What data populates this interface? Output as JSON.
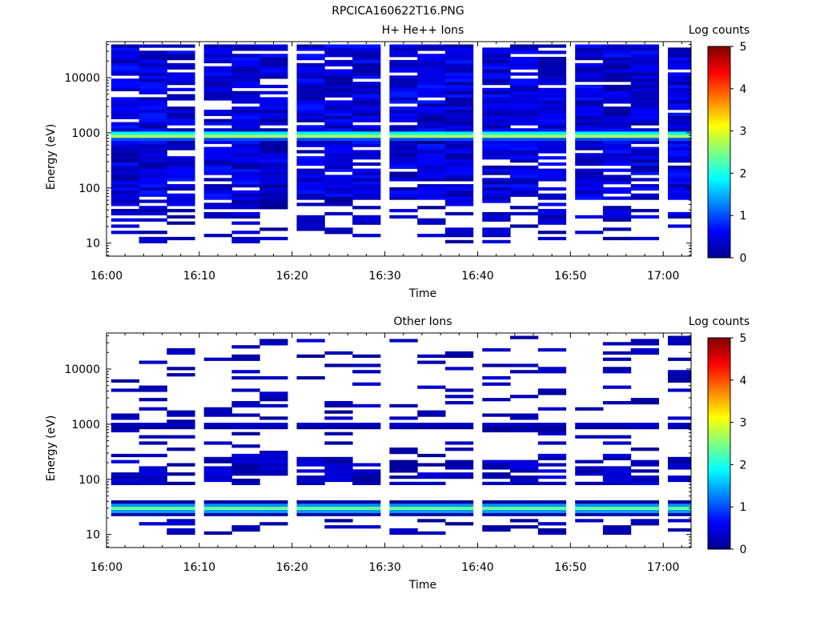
{
  "figure_title": "RPCICA160622T16.PNG",
  "chart_data": [
    {
      "type": "heatmap",
      "title": "H+ He++ Ions",
      "xlabel": "Time",
      "ylabel": "Energy (eV)",
      "colorbar_label": "Log counts",
      "colorbar_ticks": [
        "0",
        "1",
        "2",
        "3",
        "4",
        "5"
      ],
      "clim": [
        0,
        5
      ],
      "xlim": [
        "16:00",
        "17:03"
      ],
      "x_ticks": [
        "16:00",
        "16:10",
        "16:20",
        "16:30",
        "16:40",
        "16:50",
        "17:00"
      ],
      "y_scale": "log",
      "ylim": [
        5.8,
        45000
      ],
      "y_ticks": [
        "10",
        "100",
        "1000",
        "10000"
      ],
      "time_bins": [
        "16:02",
        "16:05",
        "16:08",
        "16:12",
        "16:15",
        "16:18",
        "16:22",
        "16:25",
        "16:28",
        "16:32",
        "16:35",
        "16:38",
        "16:42",
        "16:45",
        "16:48",
        "16:52",
        "16:55",
        "16:58",
        "17:02"
      ],
      "band_center_eV": 900,
      "band_peak_log_counts": 2.6,
      "grid": false
    },
    {
      "type": "heatmap",
      "title": "Other Ions",
      "xlabel": "Time",
      "ylabel": "Energy (eV)",
      "colorbar_label": "Log counts",
      "colorbar_ticks": [
        "0",
        "1",
        "2",
        "3",
        "4",
        "5"
      ],
      "clim": [
        0,
        5
      ],
      "xlim": [
        "16:00",
        "17:03"
      ],
      "x_ticks": [
        "16:00",
        "16:10",
        "16:20",
        "16:30",
        "16:40",
        "16:50",
        "17:00"
      ],
      "y_scale": "log",
      "ylim": [
        5.8,
        45000
      ],
      "y_ticks": [
        "10",
        "100",
        "1000",
        "10000"
      ],
      "time_bins": [
        "16:02",
        "16:05",
        "16:08",
        "16:12",
        "16:15",
        "16:18",
        "16:22",
        "16:25",
        "16:28",
        "16:32",
        "16:35",
        "16:38",
        "16:42",
        "16:45",
        "16:48",
        "16:52",
        "16:55",
        "16:58",
        "17:02"
      ],
      "band_center_eV": 30,
      "band_peak_log_counts": 2.2,
      "secondary_line_eV": 950,
      "grid": false
    }
  ]
}
